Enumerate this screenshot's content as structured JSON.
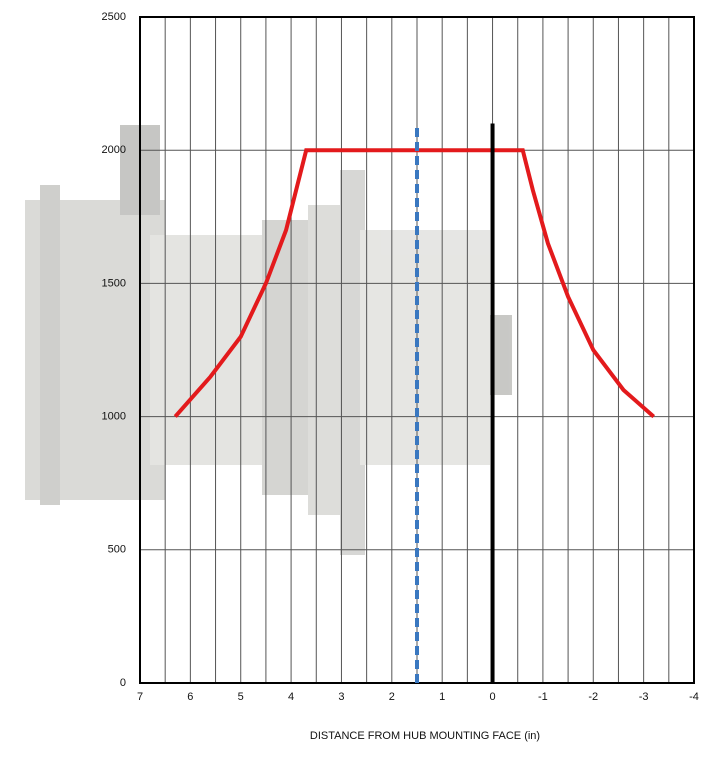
{
  "chart_data": {
    "type": "line",
    "x_label": "DISTANCE FROM HUB MOUNTING FACE (in)",
    "xlim": [
      7,
      -4
    ],
    "xticks": [
      7,
      6,
      5,
      4,
      3,
      2,
      1,
      0,
      -1,
      -2,
      -3,
      -4
    ],
    "ylim": [
      0,
      2500
    ],
    "yticks": [
      0,
      500,
      1000,
      1500,
      2000,
      2500
    ],
    "grid": true,
    "series": [
      {
        "color": "#e31a1c",
        "style": "solid",
        "x": [
          6.3,
          5.6,
          5.0,
          4.5,
          4.1,
          3.9,
          3.7,
          -0.6,
          -0.8,
          -1.1,
          -1.5,
          -2.0,
          -2.6,
          -3.2
        ],
        "values": [
          1000,
          1150,
          1300,
          1500,
          1700,
          1850,
          2000,
          2000,
          1850,
          1650,
          1450,
          1250,
          1100,
          1000
        ]
      },
      {
        "color": "#3a78c0",
        "style": "dashed",
        "x": [
          1.5,
          1.5
        ],
        "values": [
          0,
          2100
        ]
      },
      {
        "color": "#000000",
        "style": "solid",
        "x": [
          0,
          0
        ],
        "values": [
          0,
          2100
        ]
      }
    ]
  }
}
